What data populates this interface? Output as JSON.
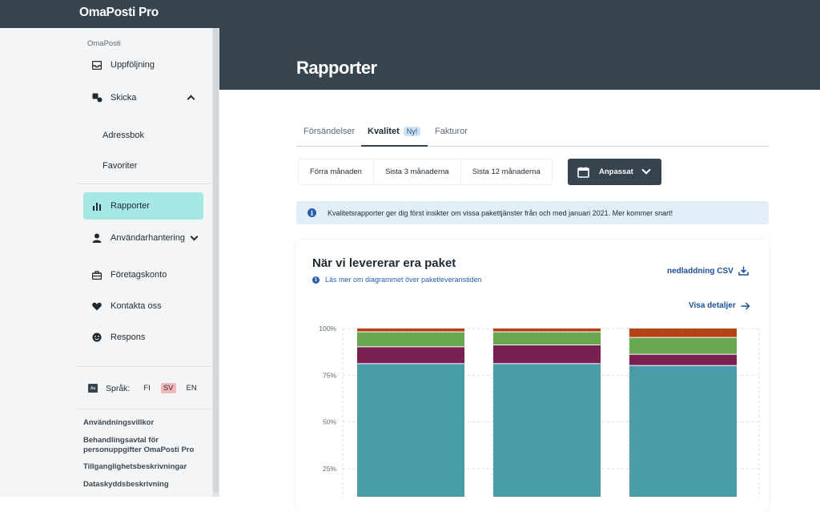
{
  "brand": "OmaPosti Pro",
  "page_title": "Rapporter",
  "sidebar": {
    "section_label": "OmaPosti",
    "items": [
      {
        "label": "Uppföljning",
        "icon": "tray-icon"
      },
      {
        "label": "Skicka",
        "icon": "send-icon",
        "expanded": true
      },
      {
        "label": "Adressbok"
      },
      {
        "label": "Favoriter"
      },
      {
        "label": "Rapporter",
        "icon": "bar-chart-icon",
        "active": true
      },
      {
        "label": "Användarhantering",
        "icon": "user-icon"
      },
      {
        "label": "Företagskonto",
        "icon": "briefcase-icon"
      },
      {
        "label": "Kontakta oss",
        "icon": "heart-icon"
      },
      {
        "label": "Respons",
        "icon": "smiley-icon"
      }
    ],
    "language": {
      "label": "Språk:",
      "options": [
        "FI",
        "SV",
        "EN"
      ],
      "selected": "SV"
    },
    "footer_links": [
      "Användningsvillkor",
      "Behandlingsavtal för personuppgifter OmaPosti Pro",
      "Tillganglighetsbeskrivningar",
      "Dataskyddsbeskrivning"
    ]
  },
  "tabs": [
    {
      "label": "Försändelser"
    },
    {
      "label": "Kvalitet",
      "badge": "Ny!",
      "active": true
    },
    {
      "label": "Fakturor"
    }
  ],
  "periods": [
    "Förra månaden",
    "Sista 3 månaderna",
    "Sista 12 månaderna"
  ],
  "custom_period": "Anpassat",
  "info_text": "Kvalitetsrapporter ger dig först insikter om vissa pakettjänster från och med januari 2021. Mer kommer snart!",
  "card": {
    "title": "När vi levererar era paket",
    "subtitle": "Läs mer om diagrammet över paketleveranstiden",
    "csv_label": "nedladdning CSV",
    "details_label": "Visa detaljer"
  },
  "colors": {
    "dark": "#36444f",
    "active_nav": "#a5e8e6",
    "teal": "#4a9ca9",
    "purple": "#7a1f52",
    "green": "#6aa84f",
    "orange": "#b5431a",
    "link": "#1d4f96"
  },
  "chart_data": {
    "type": "bar",
    "stacked": true,
    "y_tick_labels": [
      "100%",
      "75%",
      "50%",
      "25%"
    ],
    "ylim": [
      0,
      100
    ],
    "bar_count": 3,
    "series": [
      {
        "color": "#4a9ca9",
        "values": [
          81,
          81,
          80
        ]
      },
      {
        "color": "#7a1f52",
        "values": [
          9,
          10,
          6
        ]
      },
      {
        "color": "#6aa84f",
        "values": [
          8,
          7,
          9
        ]
      },
      {
        "color": "#b5431a",
        "values": [
          2,
          2,
          5
        ]
      }
    ]
  }
}
